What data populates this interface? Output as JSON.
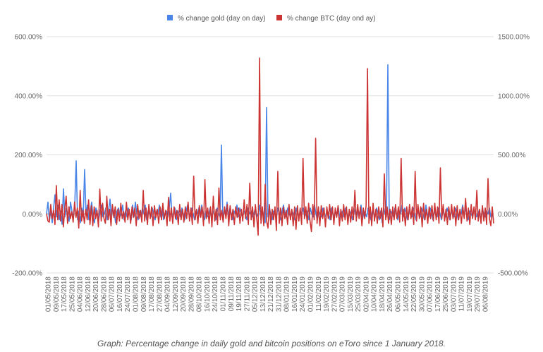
{
  "chart_data": {
    "type": "line",
    "title": "",
    "xlabel": "",
    "ylabel": "",
    "y_left": {
      "lim": [
        -200,
        600
      ],
      "ticks": [
        -200,
        0,
        200,
        400,
        600
      ],
      "tick_labels": [
        "-200.00%",
        "0.00%",
        "200.00%",
        "400.00%",
        "600.00%"
      ]
    },
    "y_right": {
      "lim": [
        -500,
        1500
      ],
      "ticks": [
        -500,
        0,
        500,
        1000,
        1500
      ],
      "tick_labels": [
        "-500.00%",
        "0.00%",
        "500.00%",
        "1000.00%",
        "1500.00%"
      ]
    },
    "grid": true,
    "legend_position": "top",
    "x_tick_labels": [
      "01/05/2018",
      "09/05/2018",
      "17/05/2018",
      "25/05/2018",
      "04/06/2018",
      "12/06/2018",
      "20/06/2018",
      "28/06/2018",
      "06/07/2018",
      "16/07/2018",
      "24/07/2018",
      "01/08/2018",
      "09/08/2018",
      "17/08/2018",
      "27/08/2018",
      "04/09/2018",
      "12/09/2018",
      "20/09/2018",
      "28/09/2018",
      "08/10/2018",
      "16/10/2018",
      "24/10/2018",
      "01/11/2018",
      "09/11/2018",
      "19/11/2018",
      "27/11/2018",
      "05/12/2018",
      "13/12/2018",
      "21/12/2018",
      "31/12/2018",
      "08/01/2019",
      "16/01/2019",
      "24/01/2019",
      "01/02/2019",
      "11/02/2019",
      "19/02/2019",
      "27/02/2019",
      "07/03/2019",
      "15/03/2019",
      "25/03/2019",
      "02/04/2019",
      "10/04/2019",
      "18/04/2019",
      "26/04/2019",
      "06/05/2019",
      "14/05/2019",
      "22/05/2019",
      "30/05/2019",
      "07/06/2019",
      "17/06/2019",
      "25/06/2019",
      "03/07/2019",
      "11/07/2019",
      "19/07/2019",
      "29/07/2019",
      "06/08/2019"
    ],
    "series": [
      {
        "name": "% change gold (day on day)",
        "axis": "left",
        "color": "#4a86e8",
        "values": [
          0,
          40,
          -20,
          10,
          -30,
          20,
          65,
          -10,
          30,
          -20,
          10,
          -35,
          85,
          -10,
          20,
          0,
          -25,
          40,
          10,
          -15,
          30,
          180,
          -20,
          10,
          -30,
          20,
          -10,
          150,
          0,
          30,
          -20,
          10,
          40,
          -10,
          -30,
          20,
          0,
          -20,
          10,
          30,
          -10,
          0,
          20,
          -20,
          10,
          50,
          -10,
          20,
          0,
          -30,
          10,
          20,
          -10,
          0,
          30,
          -20,
          10,
          -10,
          20,
          0,
          -20,
          30,
          -10,
          40,
          0,
          -20,
          10,
          -10,
          20,
          0,
          30,
          -20,
          10,
          0,
          -10,
          20,
          0,
          -20,
          10,
          0,
          30,
          -10,
          20,
          -20,
          0,
          10,
          -10,
          20,
          70,
          -10,
          0,
          20,
          -20,
          10,
          0,
          -10,
          20,
          0,
          -20,
          10,
          30,
          0,
          -10,
          20,
          0,
          -20,
          10,
          0,
          20,
          -10,
          30,
          0,
          -20,
          10,
          -10,
          0,
          20,
          -10,
          10,
          0,
          -20,
          20,
          0,
          -10,
          233,
          -20,
          10,
          0,
          40,
          -10,
          20,
          0,
          -20,
          10,
          0,
          30,
          -10,
          20,
          0,
          -10,
          10,
          0,
          -20,
          20,
          0,
          10,
          -10,
          0,
          20,
          -10,
          0,
          30,
          -20,
          10,
          0,
          -30,
          360,
          -10,
          20,
          0,
          -20,
          10,
          0,
          -10,
          20,
          0,
          -20,
          10,
          30,
          0,
          -10,
          20,
          0,
          -10,
          10,
          0,
          -20,
          20,
          0,
          -10,
          10,
          0,
          20,
          -10,
          0,
          10,
          -20,
          20,
          0,
          -10,
          30,
          0,
          -20,
          10,
          0,
          -10,
          20,
          0,
          -10,
          10,
          0,
          -20,
          20,
          0,
          -10,
          10,
          0,
          20,
          -20,
          0,
          10,
          -10,
          20,
          0,
          -10,
          10,
          0,
          -20,
          20,
          0,
          -10,
          10,
          0,
          30,
          -20,
          10,
          0,
          -10,
          20,
          0,
          -20,
          10,
          0,
          -10,
          20,
          0,
          -20,
          10,
          -30,
          20,
          0,
          -10,
          505,
          -20,
          10,
          0,
          -10,
          20,
          0,
          -20,
          10,
          0,
          30,
          -10,
          20,
          0,
          -20,
          10,
          0,
          -10,
          20,
          0,
          -20,
          10,
          0,
          -10,
          20,
          0,
          -20,
          30,
          0,
          -10,
          20,
          0,
          -20,
          10,
          0,
          -10,
          20,
          0,
          -20,
          10,
          0,
          -10,
          20,
          0,
          -20,
          10,
          0,
          -10,
          20,
          0,
          -20,
          10,
          0,
          30,
          -10,
          20,
          0,
          -20,
          10,
          0,
          -10,
          20,
          0,
          -10,
          10,
          0,
          -20,
          20,
          0,
          -10,
          10,
          0,
          20,
          -10,
          0,
          -20
        ]
      },
      {
        "name": "% change BTC (day ond ay)",
        "axis": "right",
        "color": "#cc3333",
        "values": [
          0,
          -60,
          -70,
          80,
          -40,
          30,
          -90,
          240,
          -50,
          120,
          -60,
          80,
          -110,
          40,
          150,
          -80,
          60,
          -40,
          20,
          -70,
          100,
          -30,
          50,
          -120,
          200,
          -60,
          30,
          -80,
          40,
          -50,
          120,
          -90,
          70,
          -100,
          60,
          -40,
          30,
          -110,
          210,
          -60,
          90,
          -40,
          -80,
          150,
          -50,
          40,
          -100,
          80,
          -30,
          60,
          -90,
          40,
          -60,
          90,
          -40,
          20,
          -70,
          100,
          -50,
          40,
          -80,
          60,
          -30,
          50,
          -100,
          80,
          -40,
          30,
          -70,
          200,
          -60,
          50,
          -90,
          80,
          -40,
          60,
          -100,
          70,
          -30,
          40,
          -80,
          60,
          -50,
          90,
          -40,
          30,
          -100,
          140,
          -60,
          50,
          -80,
          60,
          -40,
          30,
          -90,
          80,
          -50,
          40,
          -70,
          60,
          -40,
          100,
          -60,
          50,
          -90,
          320,
          -50,
          40,
          -80,
          70,
          -30,
          60,
          -100,
          290,
          -40,
          50,
          -80,
          60,
          -110,
          150,
          -60,
          40,
          -90,
          220,
          -50,
          30,
          -70,
          60,
          -40,
          80,
          -100,
          70,
          -50,
          40,
          -90,
          60,
          -30,
          50,
          -80,
          40,
          -60,
          120,
          -40,
          80,
          -90,
          260,
          -50,
          60,
          -110,
          80,
          -40,
          -180,
          1320,
          -80,
          60,
          -100,
          250,
          -60,
          -120,
          80,
          -90,
          40,
          -50,
          60,
          -140,
          360,
          -80,
          50,
          -100,
          60,
          -40,
          30,
          -90,
          80,
          -50,
          40,
          -100,
          60,
          -130,
          70,
          -60,
          50,
          -90,
          470,
          -40,
          60,
          -80,
          90,
          -60,
          -150,
          80,
          -50,
          640,
          -80,
          60,
          -100,
          70,
          -40,
          50,
          -110,
          60,
          -40,
          80,
          -50,
          60,
          -90,
          50,
          -30,
          70,
          -100,
          40,
          -60,
          80,
          -50,
          60,
          -90,
          40,
          -70,
          60,
          -50,
          200,
          -60,
          80,
          -40,
          60,
          -100,
          50,
          -40,
          70,
          1230,
          -80,
          60,
          -100,
          90,
          -60,
          40,
          -80,
          60,
          -40,
          50,
          -110,
          340,
          -50,
          60,
          -80,
          40,
          -90,
          60,
          -50,
          80,
          -40,
          60,
          -70,
          470,
          -60,
          40,
          -100,
          60,
          -50,
          80,
          -40,
          60,
          -90,
          360,
          -60,
          80,
          -40,
          60,
          -110,
          90,
          -50,
          40,
          -80,
          60,
          -40,
          70,
          -60,
          90,
          -50,
          60,
          -80,
          390,
          -40,
          80,
          -60,
          40,
          -90,
          60,
          -50,
          80,
          -40,
          60,
          -100,
          70,
          -50,
          40,
          -80,
          60,
          -40,
          130,
          -60,
          50,
          -90,
          80,
          -40,
          60,
          -50,
          200,
          -60,
          40,
          -80,
          70,
          -60,
          50,
          -90,
          300,
          -40,
          -100,
          60,
          -80
        ]
      }
    ],
    "caption": "Graph: Percentage change in daily gold and bitcoin positions on eToro since 1 January 2018."
  }
}
